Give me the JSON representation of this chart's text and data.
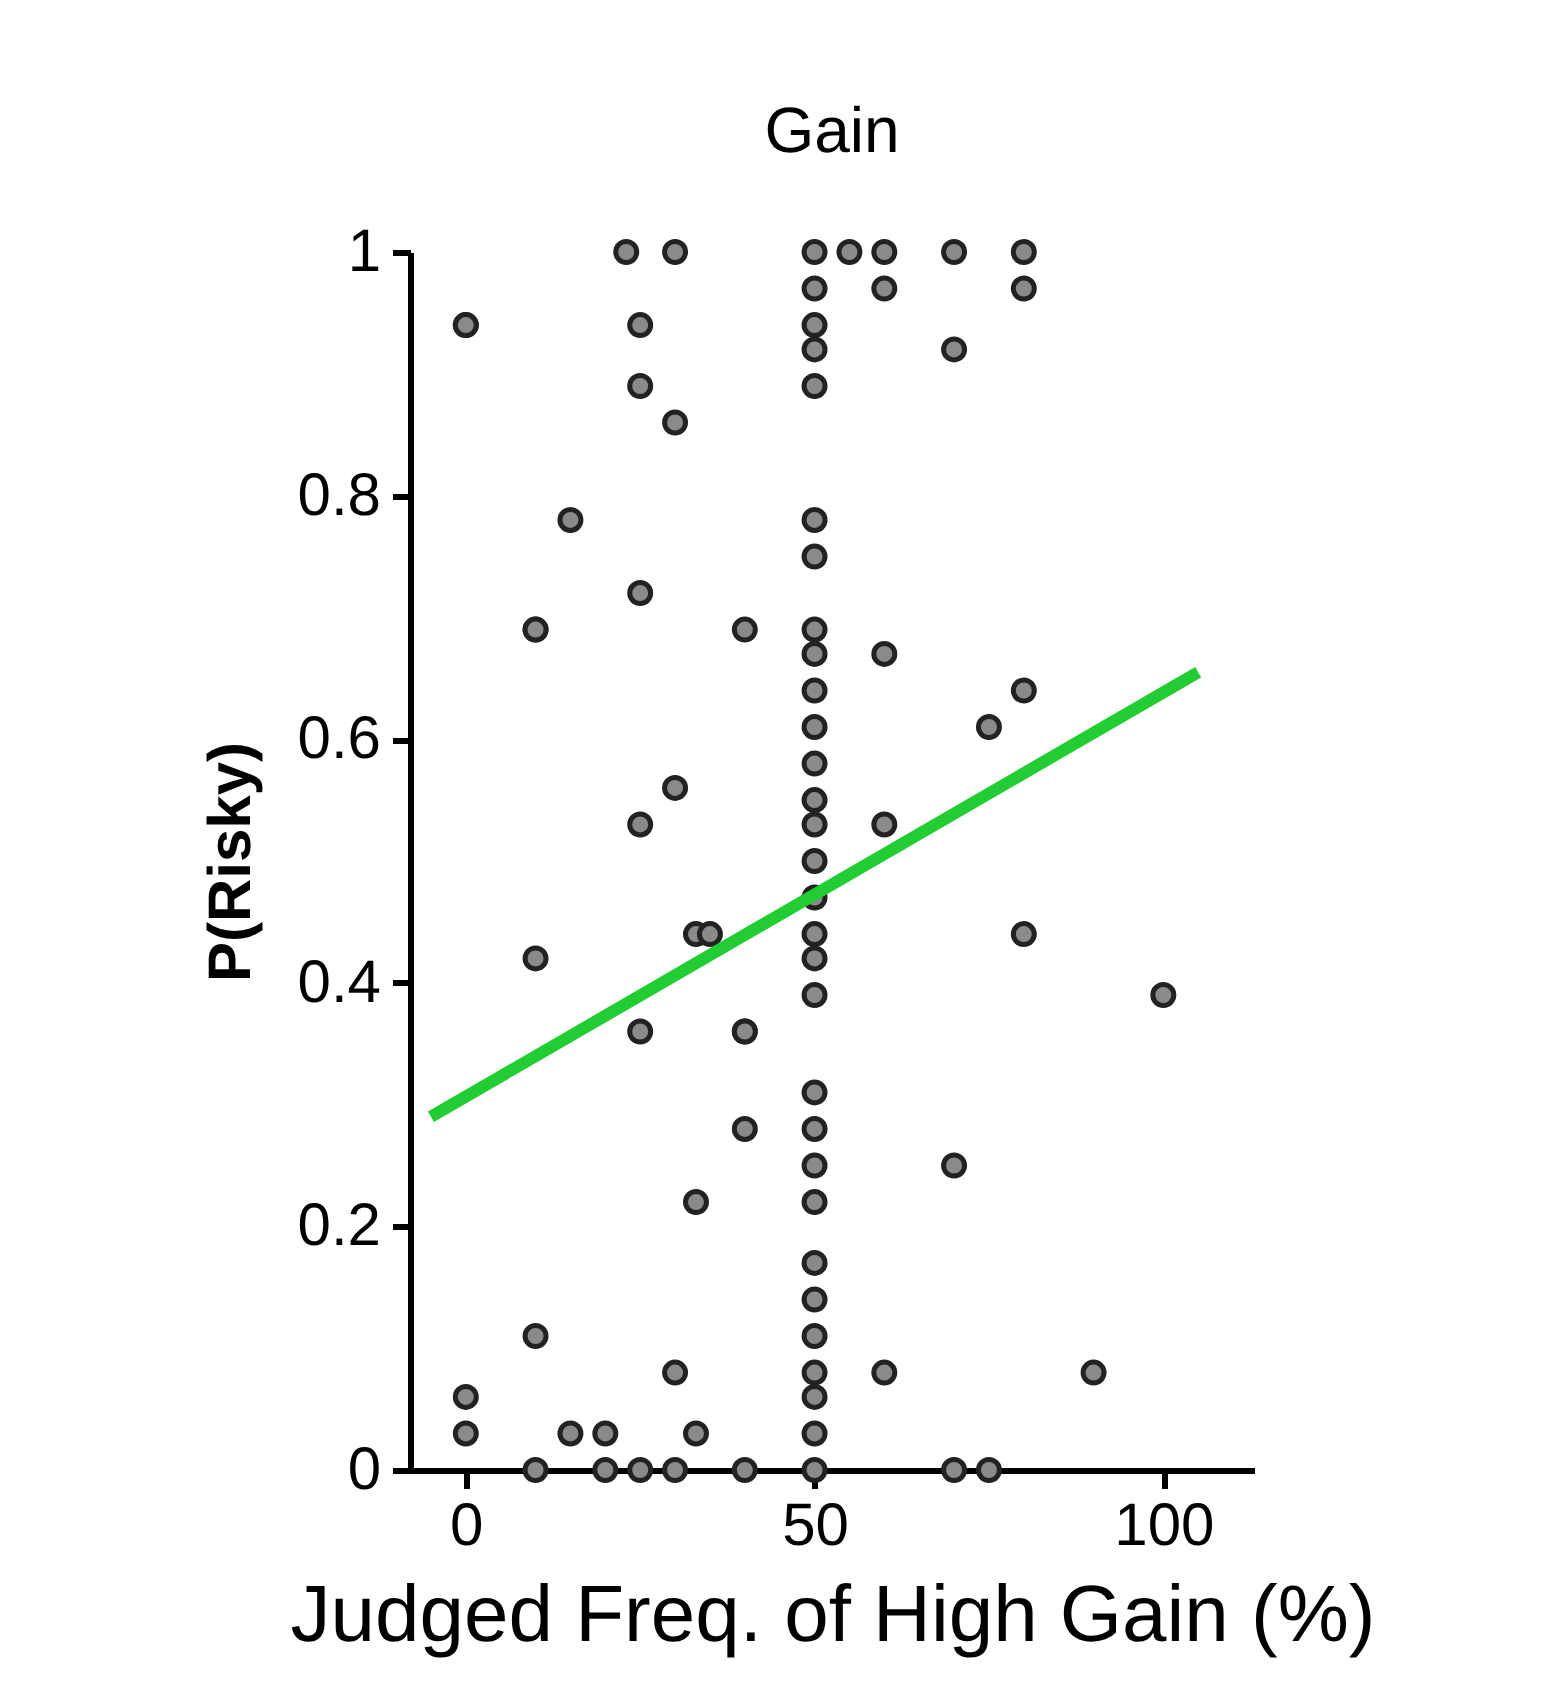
{
  "chart_data": {
    "type": "scatter",
    "title": "Gain",
    "xlabel": "Judged Freq. of High Gain (%)",
    "ylabel": "P(Risky)",
    "xlim": [
      -8,
      113
    ],
    "ylim": [
      0,
      1
    ],
    "xticks": [
      0,
      50,
      100
    ],
    "yticks": [
      0,
      0.2,
      0.4,
      0.6,
      0.8,
      1
    ],
    "grid": false,
    "series": [
      {
        "marker": "circle",
        "color": "#8a8a8a",
        "x": [
          0,
          0,
          0,
          0,
          10,
          10,
          10,
          10,
          10,
          15,
          15,
          20,
          20,
          23,
          25,
          25,
          25,
          25,
          25,
          25,
          30,
          30,
          30,
          30,
          30,
          33,
          33,
          33,
          35,
          40,
          40,
          40,
          40,
          40,
          50,
          50,
          50,
          50,
          50,
          50,
          50,
          50,
          50,
          50,
          50,
          50,
          50,
          50,
          50,
          50,
          50,
          50,
          50,
          50,
          50,
          50,
          50,
          50,
          50,
          50,
          50,
          50,
          50,
          50,
          55,
          60,
          60,
          60,
          60,
          60,
          70,
          70,
          70,
          70,
          75,
          75,
          80,
          80,
          80,
          80,
          90,
          100
        ],
        "values": [
          0.94,
          0.06,
          0.03,
          0.94,
          0.69,
          0.42,
          0.11,
          0,
          0.69,
          0.78,
          0.03,
          0.03,
          0,
          1,
          0.94,
          0.89,
          0.72,
          0.53,
          0.36,
          0,
          1,
          0.86,
          0.56,
          0.08,
          0,
          0.44,
          0.22,
          0.03,
          0.44,
          0.69,
          0.36,
          0.28,
          0,
          0.36,
          1,
          0.97,
          0.94,
          0.92,
          0.89,
          0.78,
          0.75,
          0.69,
          0.67,
          0.64,
          0.61,
          0.58,
          0.55,
          0.53,
          0.5,
          0.47,
          0.44,
          0.42,
          0.39,
          0.31,
          0.28,
          0.25,
          0.22,
          0.17,
          0.14,
          0.11,
          0.08,
          0.06,
          0.03,
          0,
          1,
          1,
          0.97,
          0.67,
          0.53,
          0.08,
          1,
          0.92,
          0.25,
          0,
          0.61,
          0,
          1,
          0.97,
          0.64,
          0.44,
          0.08,
          0.39
        ]
      },
      {
        "type": "line",
        "color": "#22cc33",
        "x": [
          -5,
          105
        ],
        "values": [
          0.29,
          0.655
        ]
      }
    ]
  }
}
